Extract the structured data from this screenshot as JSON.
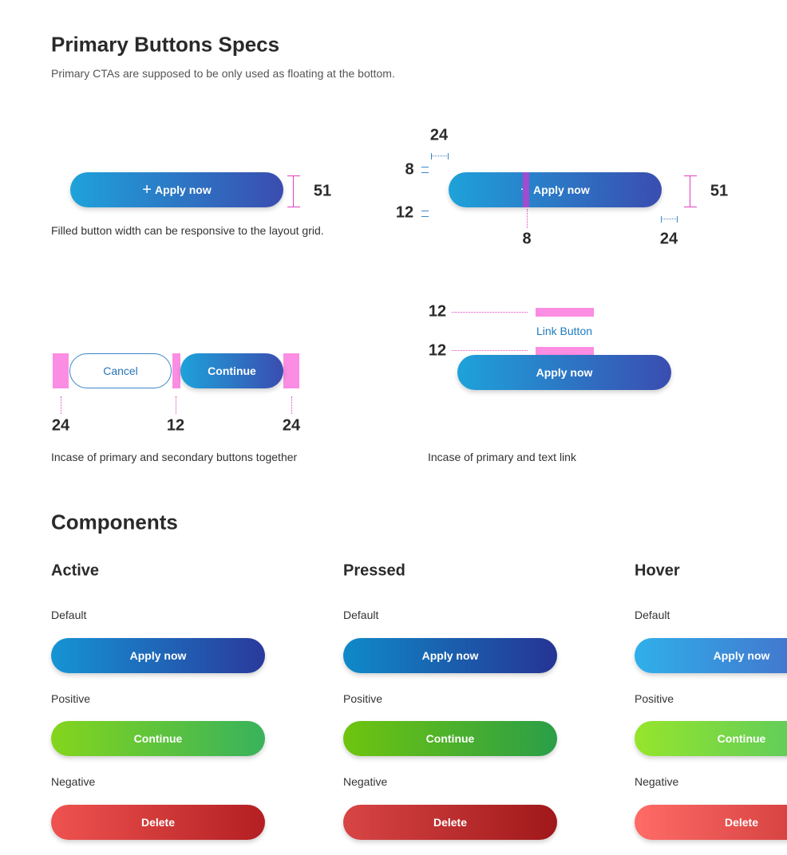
{
  "header": {
    "title": "Primary Buttons Specs",
    "subtitle": "Primary CTAs are supposed to be only used as floating at the bottom."
  },
  "specs": [
    {
      "button": "Apply now",
      "height": 51,
      "caption": "Filled button width can be responsive to the layout grid."
    },
    {
      "button": "Apply now",
      "padding_left": 24,
      "padding_top": 8,
      "padding_bottom": 12,
      "icon_gap": 8,
      "height": 51,
      "padding_right": 24
    },
    {
      "secondary": "Cancel",
      "primary": "Continue",
      "margin_left": 24,
      "gap": 12,
      "margin_right": 24,
      "caption": "Incase of primary and secondary buttons together"
    },
    {
      "top_gap": 12,
      "link": "Link Button",
      "bottom_gap": 12,
      "primary": "Apply now",
      "caption": "Incase of primary and text link"
    }
  ],
  "components": {
    "title": "Components",
    "states": [
      {
        "name": "Active",
        "variants": [
          {
            "label": "Default",
            "button": "Apply now"
          },
          {
            "label": "Positive",
            "button": "Continue"
          },
          {
            "label": "Negative",
            "button": "Delete"
          }
        ]
      },
      {
        "name": "Pressed",
        "variants": [
          {
            "label": "Default",
            "button": "Apply now"
          },
          {
            "label": "Positive",
            "button": "Continue"
          },
          {
            "label": "Negative",
            "button": "Delete"
          }
        ]
      },
      {
        "name": "Hover",
        "variants": [
          {
            "label": "Default",
            "button": "Apply now"
          },
          {
            "label": "Positive",
            "button": "Continue"
          },
          {
            "label": "Negative",
            "button": "Delete"
          }
        ]
      }
    ]
  }
}
